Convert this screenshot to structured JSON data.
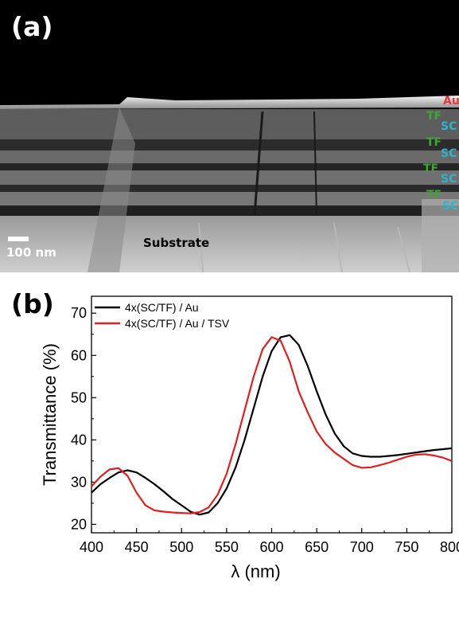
{
  "panel_a": {
    "label": "(a)",
    "scale_bar": "100 nm",
    "substrate_label": "Substrate",
    "layer_labels": [
      "Au",
      "TF",
      "SC",
      "TF",
      "SC",
      "TF",
      "SC",
      "TF",
      "SC"
    ],
    "colors": {
      "Au": "#e8343a",
      "TF": "#3fa535",
      "SC": "#2bb5cf"
    }
  },
  "panel_b": {
    "label": "(b)"
  },
  "chart_data": {
    "type": "line",
    "xlabel": "λ (nm)",
    "ylabel": "Transmittance (%)",
    "xlim": [
      400,
      800
    ],
    "ylim": [
      18,
      74
    ],
    "xticks": [
      400,
      450,
      500,
      550,
      600,
      650,
      700,
      750,
      800
    ],
    "yticks": [
      20,
      30,
      40,
      50,
      60,
      70
    ],
    "legend_position": "top-left",
    "grid": false,
    "series": [
      {
        "name": "4x(SC/TF) / Au",
        "color": "#000000",
        "x": [
          400,
          410,
          420,
          430,
          440,
          450,
          460,
          470,
          480,
          490,
          500,
          510,
          520,
          530,
          540,
          550,
          560,
          570,
          580,
          590,
          600,
          610,
          620,
          630,
          640,
          650,
          660,
          670,
          680,
          690,
          700,
          710,
          720,
          730,
          740,
          750,
          760,
          770,
          780,
          790,
          800
        ],
        "y": [
          27.5,
          29.5,
          31.0,
          32.3,
          32.8,
          32.3,
          31.0,
          29.5,
          27.8,
          26.0,
          24.5,
          23.0,
          22.3,
          22.8,
          25.0,
          28.5,
          33.5,
          40.0,
          47.5,
          55.0,
          61.0,
          64.3,
          64.8,
          62.5,
          57.5,
          51.5,
          46.0,
          41.5,
          38.5,
          36.8,
          36.2,
          36.0,
          36.0,
          36.2,
          36.4,
          36.7,
          37.0,
          37.3,
          37.6,
          37.8,
          38.0
        ]
      },
      {
        "name": "4x(SC/TF) / Au / TSV",
        "color": "#e02020",
        "x": [
          400,
          410,
          420,
          430,
          440,
          450,
          460,
          470,
          480,
          490,
          500,
          510,
          520,
          530,
          540,
          550,
          560,
          570,
          580,
          590,
          600,
          610,
          620,
          630,
          640,
          650,
          660,
          670,
          680,
          690,
          700,
          710,
          720,
          730,
          740,
          750,
          760,
          770,
          780,
          790,
          800
        ],
        "y": [
          29.0,
          31.3,
          33.0,
          33.3,
          31.5,
          27.5,
          24.5,
          23.3,
          23.0,
          22.8,
          22.7,
          22.6,
          22.9,
          24.0,
          27.0,
          32.0,
          39.0,
          47.0,
          55.0,
          61.5,
          64.3,
          63.5,
          58.5,
          51.5,
          46.5,
          42.0,
          39.0,
          37.0,
          35.5,
          34.0,
          33.4,
          33.5,
          34.0,
          34.6,
          35.3,
          36.0,
          36.5,
          36.6,
          36.3,
          35.8,
          35.0
        ]
      }
    ]
  }
}
